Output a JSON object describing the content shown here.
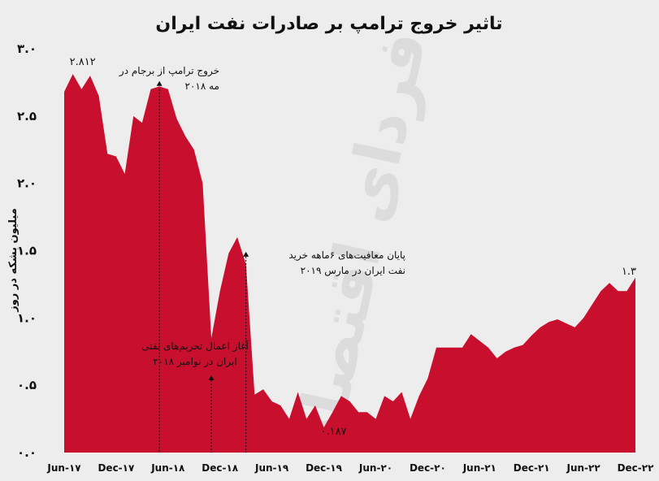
{
  "chart_data": {
    "type": "area",
    "title": "تاثیر خروج ترامپ بر صادرات نفت ایران",
    "ylabel": "میلیون بشکه در روز",
    "xlabel": "",
    "ylim": [
      0,
      3.0
    ],
    "yticks": [
      0.0,
      0.5,
      1.0,
      1.5,
      2.0,
      2.5,
      3.0
    ],
    "ytick_labels": [
      "۰.۰",
      "۰.۵",
      "۱.۰",
      "۱.۵",
      "۲.۰",
      "۲.۵",
      "۳.۰"
    ],
    "xtick_labels": [
      "Jun-۱۷",
      "Dec-۱۷",
      "Jun-۱۸",
      "Dec-۱۸",
      "Jun-۱۹",
      "Dec-۱۹",
      "Jun-۲۰",
      "Dec-۲۰",
      "Jun-۲۱",
      "Dec-۲۱",
      "Jun-۲۲",
      "Dec-۲۲"
    ],
    "x_start": "2017-06",
    "x": [
      "2017-06",
      "2017-07",
      "2017-08",
      "2017-09",
      "2017-10",
      "2017-11",
      "2017-12",
      "2018-01",
      "2018-02",
      "2018-03",
      "2018-04",
      "2018-05",
      "2018-06",
      "2018-07",
      "2018-08",
      "2018-09",
      "2018-10",
      "2018-11",
      "2018-12",
      "2019-01",
      "2019-02",
      "2019-03",
      "2019-04",
      "2019-05",
      "2019-06",
      "2019-07",
      "2019-08",
      "2019-09",
      "2019-10",
      "2019-11",
      "2019-12",
      "2020-01",
      "2020-02",
      "2020-03",
      "2020-04",
      "2020-05",
      "2020-06",
      "2020-07",
      "2020-08",
      "2020-09",
      "2020-10",
      "2020-11",
      "2020-12",
      "2021-01",
      "2021-02",
      "2021-03",
      "2021-04",
      "2021-05",
      "2021-06",
      "2021-07",
      "2021-08",
      "2021-09",
      "2021-10",
      "2021-11",
      "2021-12",
      "2022-01",
      "2022-02",
      "2022-03",
      "2022-04",
      "2022-05",
      "2022-06",
      "2022-07",
      "2022-08",
      "2022-09",
      "2022-10",
      "2022-11",
      "2022-12"
    ],
    "values": [
      2.68,
      2.812,
      2.7,
      2.8,
      2.65,
      2.22,
      2.2,
      2.07,
      2.5,
      2.45,
      2.7,
      2.72,
      2.7,
      2.48,
      2.35,
      2.25,
      2.0,
      0.85,
      1.2,
      1.48,
      1.6,
      1.4,
      0.43,
      0.47,
      0.38,
      0.35,
      0.25,
      0.45,
      0.25,
      0.35,
      0.187,
      0.3,
      0.42,
      0.38,
      0.3,
      0.3,
      0.25,
      0.42,
      0.38,
      0.45,
      0.25,
      0.42,
      0.55,
      0.78,
      0.78,
      0.78,
      0.78,
      0.88,
      0.83,
      0.78,
      0.7,
      0.75,
      0.78,
      0.8,
      0.87,
      0.93,
      0.97,
      0.99,
      0.96,
      0.93,
      1.0,
      1.1,
      1.2,
      1.26,
      1.2,
      1.2,
      1.3
    ],
    "color": "#c8102e",
    "annotations": [
      {
        "id": "peak",
        "text": "۲.۸۱۲",
        "x": "2017-07"
      },
      {
        "id": "exit",
        "lines": [
          "خروج ترامپ از برجام در",
          "مه ۲۰۱۸"
        ],
        "x": "2018-05",
        "y": 2.7
      },
      {
        "id": "sanctions",
        "lines": [
          "آغاز اعمال تحریم‌های نفتی",
          "ایران در نوامبر ۲۰۱۸"
        ],
        "x": "2018-11"
      },
      {
        "id": "waivers",
        "lines": [
          "پایان معافیت‌های ۶ماهه خرید",
          "نفت ایران در مارس ۲۰۱۹"
        ],
        "x": "2019-03",
        "y": 1.48
      },
      {
        "id": "min",
        "text": "۰.۱۸۷",
        "x": "2019-12"
      },
      {
        "id": "last",
        "text": "۱.۳",
        "x": "2022-12"
      }
    ],
    "grid": false,
    "legend": "none"
  },
  "watermark": "فردای اقتصاد"
}
